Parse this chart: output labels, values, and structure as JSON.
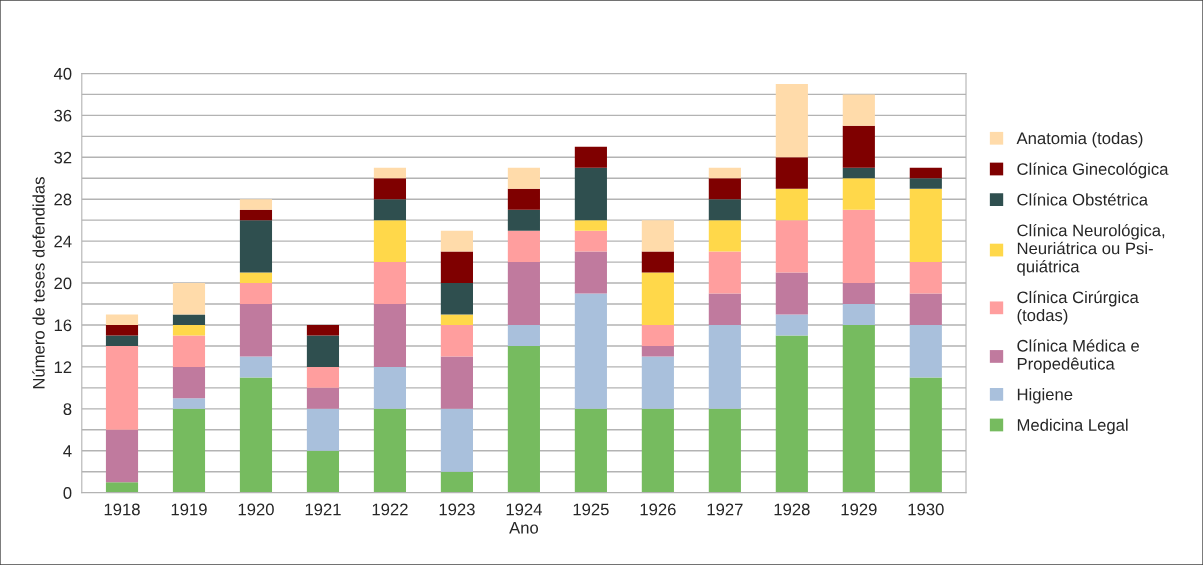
{
  "chart_data": {
    "type": "bar",
    "stacked": true,
    "xlabel": "Ano",
    "ylabel": "Número de teses defendidas",
    "categories": [
      "1918",
      "1919",
      "1920",
      "1921",
      "1922",
      "1923",
      "1924",
      "1925",
      "1926",
      "1927",
      "1928",
      "1929",
      "1930"
    ],
    "ylim": [
      0,
      40
    ],
    "yticks": [
      0,
      4,
      8,
      12,
      16,
      20,
      24,
      28,
      32,
      36,
      40
    ],
    "grid": "y",
    "legend": "right",
    "series": [
      {
        "name": "Medicina Legal",
        "color": "#76bb5f",
        "values": [
          1,
          8,
          11,
          4,
          8,
          2,
          14,
          8,
          8,
          8,
          15,
          16,
          11
        ]
      },
      {
        "name": "Higiene",
        "color": "#a9c0dc",
        "values": [
          0,
          1,
          2,
          4,
          4,
          6,
          2,
          11,
          5,
          8,
          2,
          2,
          5
        ]
      },
      {
        "name": "Clínica Médica e\nPropedêutica",
        "color": "#c07a9e",
        "values": [
          5,
          3,
          5,
          2,
          6,
          5,
          6,
          4,
          1,
          3,
          4,
          2,
          3
        ]
      },
      {
        "name": "Clínica Cirúrgica\n(todas)",
        "color": "#ff9e9e",
        "values": [
          8,
          3,
          2,
          2,
          4,
          3,
          3,
          2,
          2,
          4,
          5,
          7,
          3
        ]
      },
      {
        "name": "Clínica Neurológica,\nNeuriátrica ou Psi-\nquiátrica",
        "color": "#ffd84a",
        "values": [
          0,
          1,
          1,
          0,
          4,
          1,
          0,
          1,
          5,
          3,
          3,
          3,
          7
        ]
      },
      {
        "name": "Clínica Obstétrica",
        "color": "#2f4f4f",
        "values": [
          1,
          1,
          5,
          3,
          2,
          3,
          2,
          5,
          0,
          2,
          0,
          1,
          1
        ]
      },
      {
        "name": "Clínica Ginecológica",
        "color": "#7f0000",
        "values": [
          1,
          0,
          1,
          1,
          2,
          3,
          2,
          2,
          2,
          2,
          3,
          4,
          1
        ]
      },
      {
        "name": "Anatomia (todas)",
        "color": "#ffdbaa",
        "values": [
          1,
          3,
          1,
          0,
          1,
          2,
          2,
          0,
          3,
          1,
          7,
          3,
          0
        ]
      }
    ]
  }
}
